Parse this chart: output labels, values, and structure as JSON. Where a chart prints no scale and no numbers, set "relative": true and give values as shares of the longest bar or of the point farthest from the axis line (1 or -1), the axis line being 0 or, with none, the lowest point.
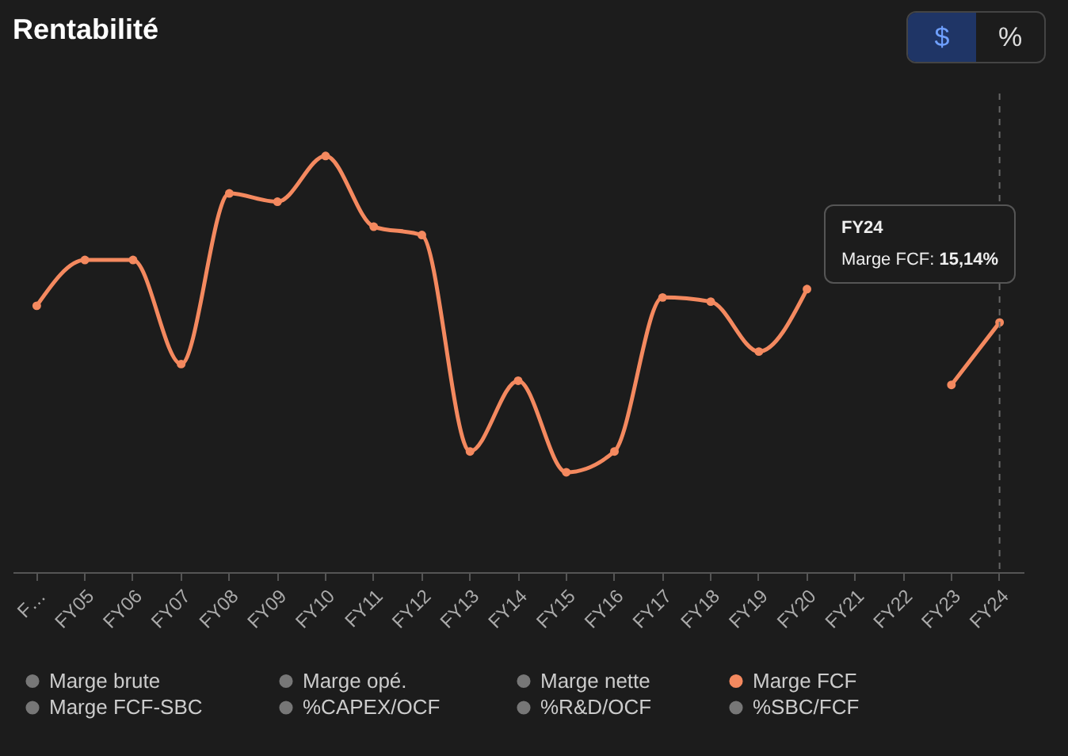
{
  "chart_data": {
    "type": "line",
    "title": "Rentabilité",
    "relative": true,
    "categories": [
      "F…",
      "FY05",
      "FY06",
      "FY07",
      "FY08",
      "FY09",
      "FY10",
      "FY11",
      "FY12",
      "FY13",
      "FY14",
      "FY15",
      "FY16",
      "FY17",
      "FY18",
      "FY19",
      "FY20",
      "FY21",
      "FY22",
      "FY23",
      "FY24"
    ],
    "series": [
      {
        "name": "Marge brute",
        "color": "#777777",
        "values": [
          null,
          null,
          null,
          null,
          null,
          null,
          null,
          null,
          null,
          null,
          null,
          null,
          null,
          null,
          null,
          null,
          null,
          null,
          null,
          null,
          null
        ]
      },
      {
        "name": "Marge opé.",
        "color": "#777777",
        "values": [
          null,
          null,
          null,
          null,
          null,
          null,
          null,
          null,
          null,
          null,
          null,
          null,
          null,
          null,
          null,
          null,
          null,
          null,
          null,
          null,
          null
        ]
      },
      {
        "name": "Marge nette",
        "color": "#777777",
        "values": [
          null,
          null,
          null,
          null,
          null,
          null,
          null,
          null,
          null,
          null,
          null,
          null,
          null,
          null,
          null,
          null,
          null,
          null,
          null,
          null,
          null
        ]
      },
      {
        "name": "Marge FCF",
        "color": "#f4895f",
        "values": [
          0.64,
          0.75,
          0.75,
          0.5,
          0.91,
          0.89,
          1,
          0.83,
          0.81,
          0.29,
          0.46,
          0.24,
          0.29,
          0.66,
          0.65,
          0.53,
          0.68,
          null,
          null,
          0.45,
          0.6
        ]
      },
      {
        "name": "Marge FCF-SBC",
        "color": "#777777",
        "values": [
          null,
          null,
          null,
          null,
          null,
          null,
          null,
          null,
          null,
          null,
          null,
          null,
          null,
          null,
          null,
          null,
          null,
          null,
          null,
          null,
          null
        ]
      },
      {
        "name": "%CAPEX/OCF",
        "color": "#777777",
        "values": [
          null,
          null,
          null,
          null,
          null,
          null,
          null,
          null,
          null,
          null,
          null,
          null,
          null,
          null,
          null,
          null,
          null,
          null,
          null,
          null,
          null
        ]
      },
      {
        "name": "%R&D/OCF",
        "color": "#777777",
        "values": [
          null,
          null,
          null,
          null,
          null,
          null,
          null,
          null,
          null,
          null,
          null,
          null,
          null,
          null,
          null,
          null,
          null,
          null,
          null,
          null,
          null
        ]
      },
      {
        "name": "%SBC/FCF",
        "color": "#777777",
        "values": [
          null,
          null,
          null,
          null,
          null,
          null,
          null,
          null,
          null,
          null,
          null,
          null,
          null,
          null,
          null,
          null,
          null,
          null,
          null,
          null,
          null
        ]
      }
    ],
    "marker": "circle",
    "grid": false,
    "legend": "bottom",
    "ref_lines": [
      {
        "axis": "x",
        "value": "FY24",
        "color": "#666666",
        "line_style": "dashed"
      }
    ],
    "annotations": [
      "$",
      "%",
      "FY24",
      "Marge FCF: 15,14%"
    ]
  }
}
